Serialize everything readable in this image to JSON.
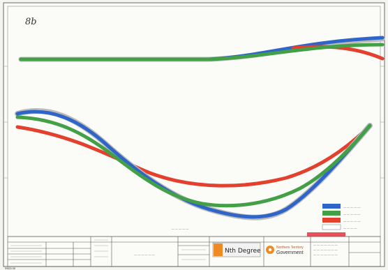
{
  "page": {
    "handwritten_label": "8b",
    "bottom_left_code": "RIB20-08"
  },
  "colors": {
    "blue": "#2f64c8",
    "green": "#43a047",
    "red": "#e3412e",
    "grey": "#9a9a9a",
    "frame": "#555555",
    "legend_red_bar": "#e8505a",
    "logo_orange": "#f08a24"
  },
  "legend": {
    "entries": [
      {
        "color": "blue",
        "label": "— — — — —"
      },
      {
        "color": "green",
        "label": "— — — — —"
      },
      {
        "color": "red",
        "label": "— — — — —"
      },
      {
        "color": "white",
        "label": "— — — —"
      }
    ]
  },
  "center_caption": "— — — — —",
  "title_block": {
    "scale_text": "— — — — — —",
    "nth_degree_logo": "Nth Degree",
    "gov_logo_line1": "Northern Territory",
    "gov_logo_line2": "Government",
    "info_lines": [
      "— — — — — — —",
      "— — — — — — —",
      "— — — — — — —"
    ]
  },
  "icons": {
    "gov_emblem": "flower-emblem-icon"
  }
}
